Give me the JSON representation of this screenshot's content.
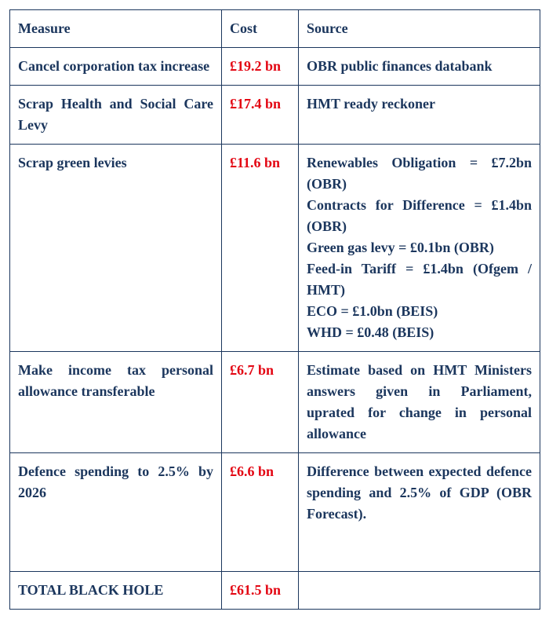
{
  "columns": {
    "measure": "Measure",
    "cost": "Cost",
    "source": "Source"
  },
  "rows": [
    {
      "measure": "Cancel corporation tax increase",
      "cost": "£19.2 bn",
      "source": "OBR public finances databank"
    },
    {
      "measure": "Scrap Health and Social Care Levy",
      "cost": "£17.4 bn",
      "source": "HMT ready reckoner"
    },
    {
      "measure": "Scrap green levies",
      "cost": "£11.6 bn",
      "source": "Renewables Obligation = £7.2bn (OBR)\nContracts for Difference = £1.4bn (OBR)\nGreen gas levy = £0.1bn (OBR)\nFeed-in Tariff = £1.4bn (Ofgem / HMT)\nECO = £1.0bn (BEIS)\nWHD = £0.48 (BEIS)"
    },
    {
      "measure": "Make income tax personal allowance transferable",
      "cost": "£6.7 bn",
      "source": "Estimate based on HMT Ministers answers given in Parliament, uprated for change in personal allowance"
    },
    {
      "measure": "Defence spending to 2.5% by 2026",
      "cost": "£6.6 bn",
      "source": "Difference between expected defence spending and 2.5% of GDP (OBR Forecast).",
      "tall": true
    },
    {
      "measure": "TOTAL BLACK HOLE",
      "cost": "£61.5 bn",
      "source": ""
    }
  ],
  "colors": {
    "text": "#1b365d",
    "cost": "#e30613",
    "border": "#1b365d",
    "background": "#ffffff"
  }
}
